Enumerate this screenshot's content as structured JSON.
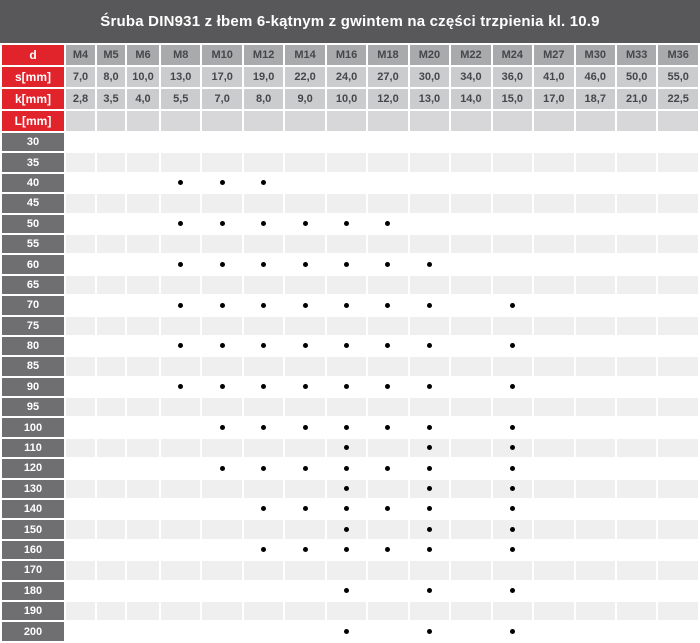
{
  "title": "Śruba DIN931 z łbem 6-kątnym z gwintem na części trzpienia kl. 10.9",
  "table": {
    "row_headers": {
      "d": "d",
      "s": "s[mm]",
      "k": "k[mm]",
      "L": "L[mm]"
    },
    "columns": [
      "M4",
      "M5",
      "M6",
      "M8",
      "M10",
      "M12",
      "M14",
      "M16",
      "M18",
      "M20",
      "M22",
      "M24",
      "M27",
      "M30",
      "M33",
      "M36"
    ],
    "s_values": [
      "7,0",
      "8,0",
      "10,0",
      "13,0",
      "17,0",
      "19,0",
      "22,0",
      "24,0",
      "27,0",
      "30,0",
      "34,0",
      "36,0",
      "41,0",
      "46,0",
      "50,0",
      "55,0"
    ],
    "k_values": [
      "2,8",
      "3,5",
      "4,0",
      "5,5",
      "7,0",
      "8,0",
      "9,0",
      "10,0",
      "12,0",
      "13,0",
      "14,0",
      "15,0",
      "17,0",
      "18,7",
      "21,0",
      "22,5"
    ],
    "lengths": [
      {
        "label": "30",
        "dots": []
      },
      {
        "label": "35",
        "dots": []
      },
      {
        "label": "40",
        "dots": [
          "M8",
          "M10",
          "M12"
        ]
      },
      {
        "label": "45",
        "dots": []
      },
      {
        "label": "50",
        "dots": [
          "M8",
          "M10",
          "M12",
          "M14",
          "M16",
          "M18"
        ]
      },
      {
        "label": "55",
        "dots": []
      },
      {
        "label": "60",
        "dots": [
          "M8",
          "M10",
          "M12",
          "M14",
          "M16",
          "M18",
          "M20"
        ]
      },
      {
        "label": "65",
        "dots": []
      },
      {
        "label": "70",
        "dots": [
          "M8",
          "M10",
          "M12",
          "M14",
          "M16",
          "M18",
          "M20",
          "M24"
        ]
      },
      {
        "label": "75",
        "dots": []
      },
      {
        "label": "80",
        "dots": [
          "M8",
          "M10",
          "M12",
          "M14",
          "M16",
          "M18",
          "M20",
          "M24"
        ]
      },
      {
        "label": "85",
        "dots": []
      },
      {
        "label": "90",
        "dots": [
          "M8",
          "M10",
          "M12",
          "M14",
          "M16",
          "M18",
          "M20",
          "M24"
        ]
      },
      {
        "label": "95",
        "dots": []
      },
      {
        "label": "100",
        "dots": [
          "M10",
          "M12",
          "M14",
          "M16",
          "M18",
          "M20",
          "M24"
        ]
      },
      {
        "label": "110",
        "dots": [
          "M16",
          "M20",
          "M24"
        ]
      },
      {
        "label": "120",
        "dots": [
          "M10",
          "M12",
          "M14",
          "M16",
          "M18",
          "M20",
          "M24"
        ]
      },
      {
        "label": "130",
        "dots": [
          "M16",
          "M20",
          "M24"
        ]
      },
      {
        "label": "140",
        "dots": [
          "M12",
          "M14",
          "M16",
          "M18",
          "M20",
          "M24"
        ]
      },
      {
        "label": "150",
        "dots": [
          "M16",
          "M20",
          "M24"
        ]
      },
      {
        "label": "160",
        "dots": [
          "M12",
          "M14",
          "M16",
          "M18",
          "M20",
          "M24"
        ]
      },
      {
        "label": "170",
        "dots": []
      },
      {
        "label": "180",
        "dots": [
          "M16",
          "M20",
          "M24"
        ]
      },
      {
        "label": "190",
        "dots": []
      },
      {
        "label": "200",
        "dots": [
          "M16",
          "M20",
          "M24"
        ]
      }
    ]
  },
  "colors": {
    "title_bar_bg": "#58585a",
    "accent_red": "#e1242b",
    "column_header_bg": "#a9aaac",
    "value_cell_bg": "#cbcccd",
    "l_row_bg": "#d7d7d9",
    "length_label_bg": "#6f6f72",
    "alt_row_bg": "#efeff0",
    "dot_color": "#000000",
    "header_text": "#46474b"
  }
}
